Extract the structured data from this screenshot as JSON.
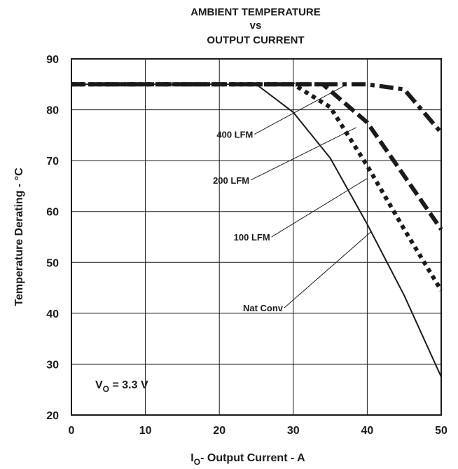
{
  "chart_data": {
    "type": "line",
    "title": [
      "AMBIENT TEMPERATURE",
      "vs",
      "OUTPUT CURRENT"
    ],
    "xlabel": {
      "main": "I",
      "sub": "O",
      "rest": "- Output Current - A"
    },
    "ylabel": "Temperature Derating - °C",
    "xlim": [
      0,
      50
    ],
    "ylim": [
      20,
      90
    ],
    "xticks": [
      0,
      10,
      20,
      30,
      40,
      50
    ],
    "yticks": [
      20,
      30,
      40,
      50,
      60,
      70,
      80,
      90
    ],
    "grid": true,
    "annotation": {
      "main": "V",
      "sub": "O",
      "rest": " = 3.3 V"
    },
    "series": [
      {
        "name": "Nat Conv",
        "style": "solid",
        "x": [
          0,
          25,
          30,
          35,
          40,
          45,
          50
        ],
        "y": [
          85,
          85,
          79.5,
          70.5,
          57.5,
          43.5,
          27.5
        ]
      },
      {
        "name": "100 LFM",
        "style": "dotted",
        "x": [
          0,
          30,
          35,
          40,
          45,
          50
        ],
        "y": [
          85,
          85,
          80.5,
          69,
          56.5,
          44.5
        ]
      },
      {
        "name": "200 LFM",
        "style": "dashed",
        "x": [
          0,
          34,
          40,
          45,
          50
        ],
        "y": [
          85,
          85,
          77.5,
          67,
          56.5
        ]
      },
      {
        "name": "400 LFM",
        "style": "dashdot",
        "x": [
          0,
          40,
          45,
          50
        ],
        "y": [
          85,
          85,
          84,
          75.5
        ]
      }
    ],
    "labels": [
      {
        "series": "400 LFM",
        "text": "400 LFM",
        "at": [
          22.1,
          74.5
        ],
        "target": [
          37,
          84.8
        ]
      },
      {
        "series": "200 LFM",
        "text": "200 LFM",
        "at": [
          21.6,
          65.5
        ],
        "target": [
          38.5,
          76.5
        ]
      },
      {
        "series": "100 LFM",
        "text": "100 LFM",
        "at": [
          24.4,
          54.3
        ],
        "target": [
          40,
          66.5
        ]
      },
      {
        "series": "Nat Conv",
        "text": "Nat Conv",
        "at": [
          25.9,
          40.4
        ],
        "target": [
          40.5,
          56
        ]
      }
    ],
    "colors": {
      "line": "#1a1a1a",
      "grid": "#1a1a1a"
    }
  }
}
